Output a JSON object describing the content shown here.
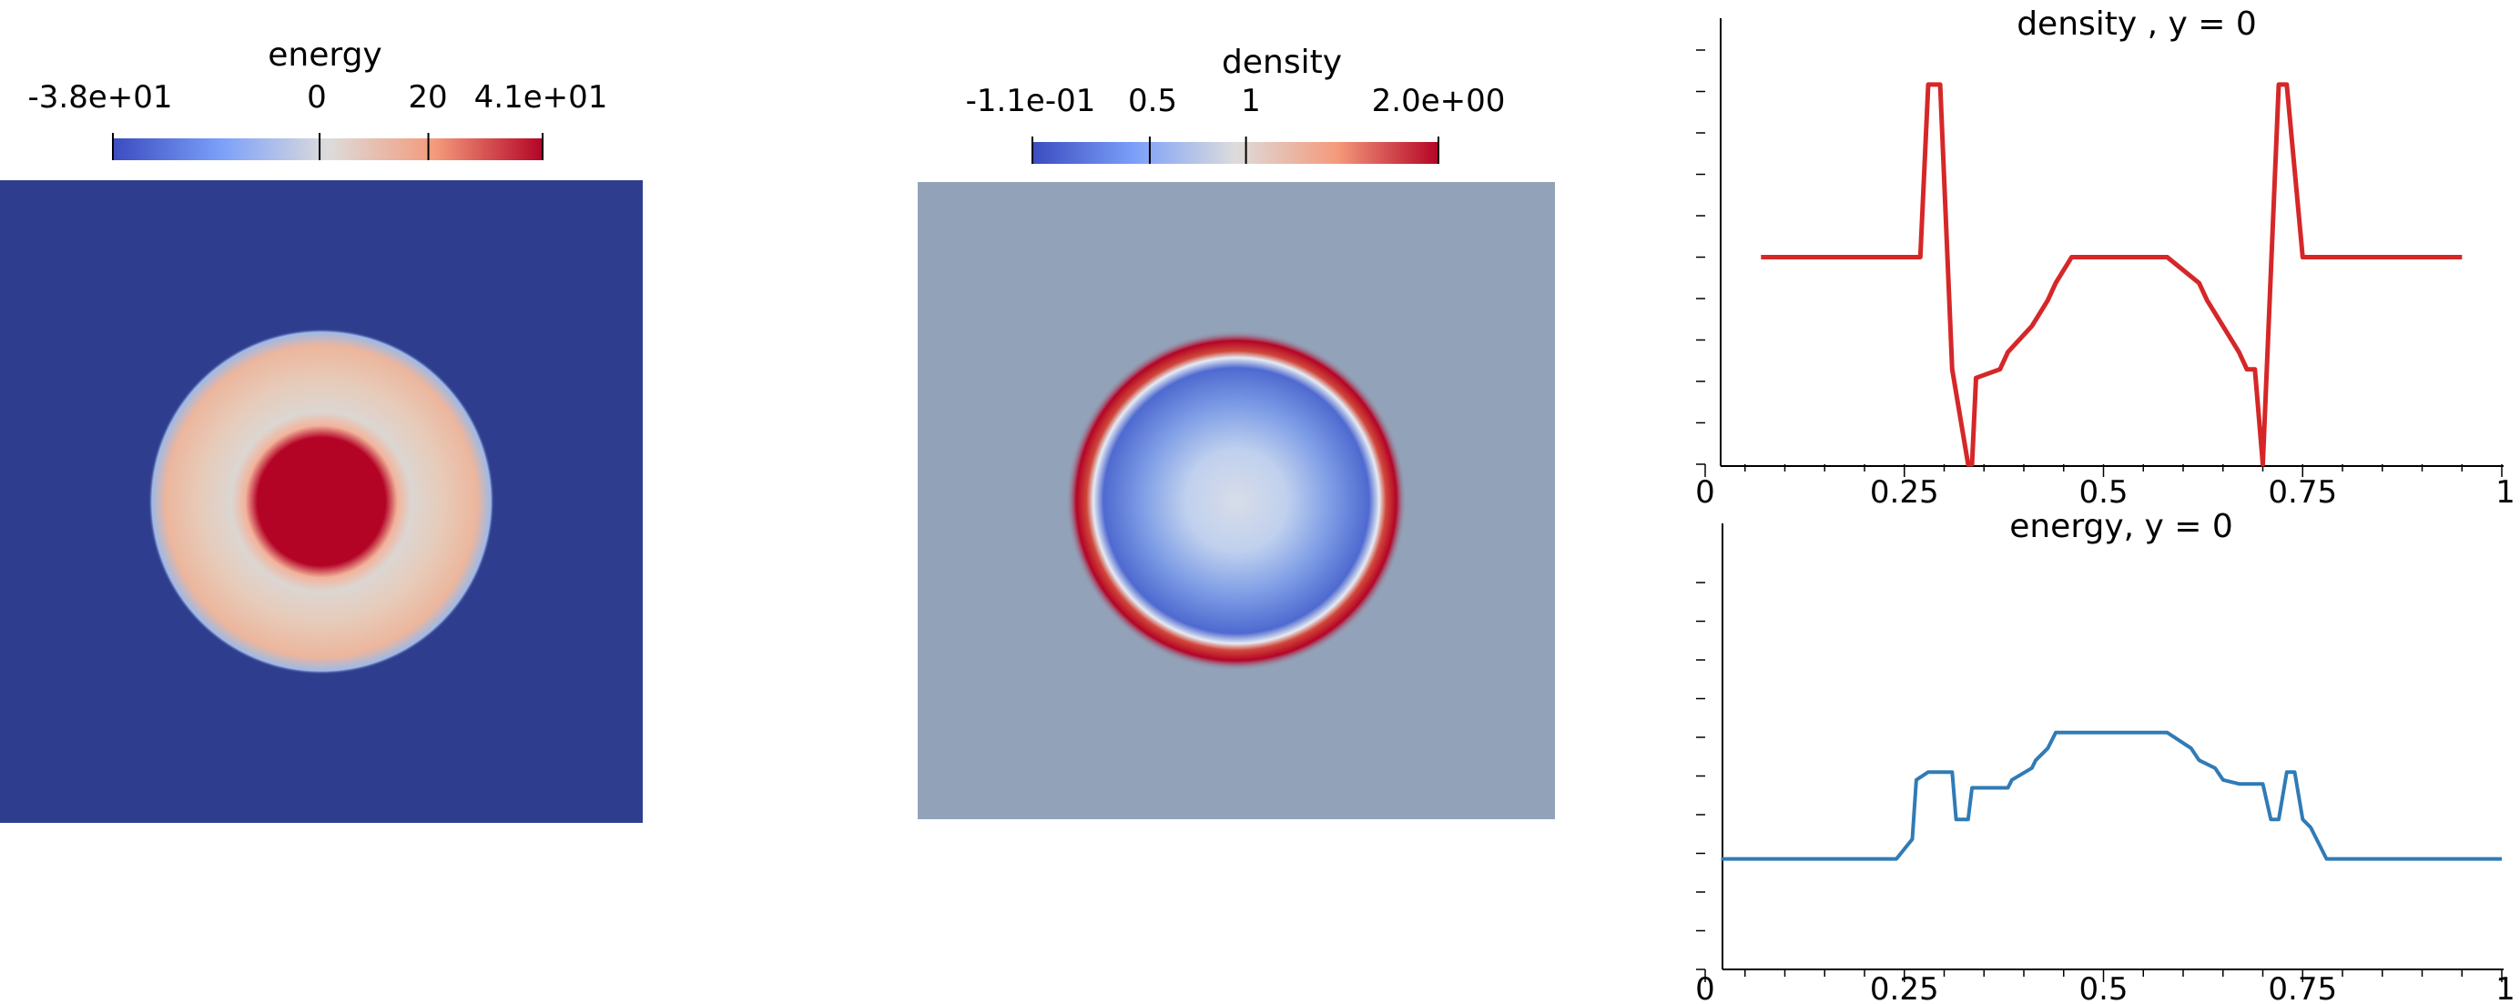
{
  "colors": {
    "cool": "#3b4cc0",
    "mid": "#dddcdc",
    "warm": "#b40426",
    "energy_background": "#2f3d8f",
    "density_background": "#92a2b8",
    "density_line": "#d62728",
    "energy_line": "#2f7bb6"
  },
  "chart_data": [
    {
      "type": "heatmap",
      "title": "energy",
      "colorbar": {
        "min": -38,
        "max": 41,
        "tick_values": [
          -38,
          0,
          20,
          41
        ],
        "tick_labels": [
          "-3.8e+01",
          "0",
          "20",
          "4.1e+01"
        ],
        "colormap": "cool-to-warm"
      },
      "domain": {
        "x": [
          -1,
          1
        ],
        "y": [
          -1,
          1
        ]
      },
      "description_values": {
        "background": -38,
        "outer_ring_radius": 0.5,
        "ring_value": 12,
        "inner_disc_radius": 0.2,
        "inner_value": 41
      }
    },
    {
      "type": "heatmap",
      "title": "density",
      "colorbar": {
        "min": -0.11,
        "max": 2.0,
        "tick_values": [
          -0.11,
          0.5,
          1,
          2.0
        ],
        "tick_labels": [
          "-1.1e-01",
          "0.5",
          "1",
          "2.0e+00"
        ],
        "colormap": "cool-to-warm"
      },
      "domain": {
        "x": [
          -1,
          1
        ],
        "y": [
          -1,
          1
        ]
      },
      "description_values": {
        "background": 0.95,
        "ring_radius": 0.52,
        "ring_value": 2.0,
        "interior_value": 0.3,
        "center_value": 0.75
      }
    },
    {
      "type": "line",
      "title": "density , y = 0",
      "x_ticks": [
        "0",
        "0.25",
        "0.5",
        "0.75",
        "1"
      ],
      "xlim": [
        0,
        1
      ],
      "ylim": [
        -0.2,
        2.2
      ],
      "series": [
        {
          "x": [
            0.07,
            0.27,
            0.28,
            0.295,
            0.31,
            0.33,
            0.335,
            0.34,
            0.37,
            0.38,
            0.4,
            0.41,
            0.43,
            0.44,
            0.46,
            0.5,
            0.58,
            0.62,
            0.63,
            0.65,
            0.67,
            0.68,
            0.69,
            0.7,
            0.72,
            0.73,
            0.75,
            0.95
          ],
          "values": [
            1.0,
            1.0,
            2.0,
            2.0,
            0.35,
            -0.2,
            -0.2,
            0.3,
            0.35,
            0.45,
            0.55,
            0.6,
            0.75,
            0.85,
            1.0,
            1.0,
            1.0,
            0.85,
            0.75,
            0.6,
            0.45,
            0.35,
            0.35,
            -0.2,
            2.0,
            2.0,
            1.0,
            1.0
          ]
        }
      ]
    },
    {
      "type": "line",
      "title": "energy, y = 0",
      "x_ticks": [
        "0",
        "0.25",
        "0.5",
        "0.75",
        "1"
      ],
      "xlim": [
        0,
        1
      ],
      "ylim": [
        -38,
        60
      ],
      "series": [
        {
          "x": [
            0.02,
            0.24,
            0.26,
            0.265,
            0.28,
            0.31,
            0.315,
            0.33,
            0.335,
            0.37,
            0.38,
            0.385,
            0.41,
            0.415,
            0.43,
            0.44,
            0.45,
            0.58,
            0.61,
            0.62,
            0.64,
            0.65,
            0.67,
            0.7,
            0.71,
            0.72,
            0.73,
            0.74,
            0.75,
            0.76,
            0.78,
            1.0
          ],
          "values": [
            -10,
            -10,
            -5,
            10,
            12,
            12,
            0,
            0,
            8,
            8,
            8,
            10,
            13,
            15,
            18,
            22,
            22,
            22,
            18,
            15,
            13,
            10,
            9,
            9,
            0,
            0,
            12,
            12,
            0,
            -2,
            -10,
            -10
          ]
        }
      ]
    }
  ]
}
